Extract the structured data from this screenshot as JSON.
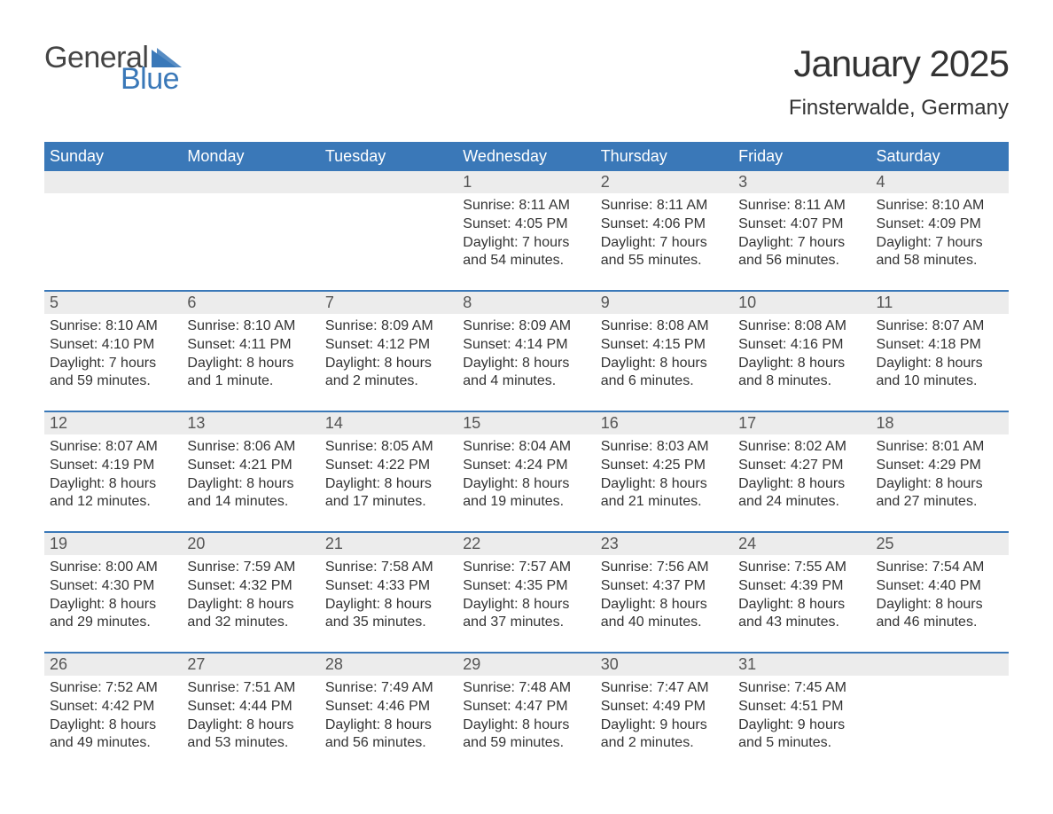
{
  "logo": {
    "text_general": "General",
    "text_blue": "Blue",
    "flag_color": "#3a78b8",
    "general_color": "#444444",
    "blue_color": "#3a78b8"
  },
  "header": {
    "month_title": "January 2025",
    "location": "Finsterwalde, Germany"
  },
  "colors": {
    "header_bg": "#3a78b8",
    "header_text": "#ffffff",
    "daynum_bg": "#ececec",
    "daynum_text": "#555555",
    "body_text": "#333333",
    "row_divider": "#3a78b8",
    "page_bg": "#ffffff"
  },
  "typography": {
    "month_title_fontsize": 42,
    "location_fontsize": 24,
    "day_header_fontsize": 18,
    "day_num_fontsize": 18,
    "detail_fontsize": 16,
    "font_family": "Arial"
  },
  "layout": {
    "columns": 7,
    "rows": 5,
    "cell_min_height": 120
  },
  "day_headers": [
    "Sunday",
    "Monday",
    "Tuesday",
    "Wednesday",
    "Thursday",
    "Friday",
    "Saturday"
  ],
  "weeks": [
    [
      null,
      null,
      null,
      {
        "n": "1",
        "sunrise": "8:11 AM",
        "sunset": "4:05 PM",
        "daylight": "7 hours and 54 minutes."
      },
      {
        "n": "2",
        "sunrise": "8:11 AM",
        "sunset": "4:06 PM",
        "daylight": "7 hours and 55 minutes."
      },
      {
        "n": "3",
        "sunrise": "8:11 AM",
        "sunset": "4:07 PM",
        "daylight": "7 hours and 56 minutes."
      },
      {
        "n": "4",
        "sunrise": "8:10 AM",
        "sunset": "4:09 PM",
        "daylight": "7 hours and 58 minutes."
      }
    ],
    [
      {
        "n": "5",
        "sunrise": "8:10 AM",
        "sunset": "4:10 PM",
        "daylight": "7 hours and 59 minutes."
      },
      {
        "n": "6",
        "sunrise": "8:10 AM",
        "sunset": "4:11 PM",
        "daylight": "8 hours and 1 minute."
      },
      {
        "n": "7",
        "sunrise": "8:09 AM",
        "sunset": "4:12 PM",
        "daylight": "8 hours and 2 minutes."
      },
      {
        "n": "8",
        "sunrise": "8:09 AM",
        "sunset": "4:14 PM",
        "daylight": "8 hours and 4 minutes."
      },
      {
        "n": "9",
        "sunrise": "8:08 AM",
        "sunset": "4:15 PM",
        "daylight": "8 hours and 6 minutes."
      },
      {
        "n": "10",
        "sunrise": "8:08 AM",
        "sunset": "4:16 PM",
        "daylight": "8 hours and 8 minutes."
      },
      {
        "n": "11",
        "sunrise": "8:07 AM",
        "sunset": "4:18 PM",
        "daylight": "8 hours and 10 minutes."
      }
    ],
    [
      {
        "n": "12",
        "sunrise": "8:07 AM",
        "sunset": "4:19 PM",
        "daylight": "8 hours and 12 minutes."
      },
      {
        "n": "13",
        "sunrise": "8:06 AM",
        "sunset": "4:21 PM",
        "daylight": "8 hours and 14 minutes."
      },
      {
        "n": "14",
        "sunrise": "8:05 AM",
        "sunset": "4:22 PM",
        "daylight": "8 hours and 17 minutes."
      },
      {
        "n": "15",
        "sunrise": "8:04 AM",
        "sunset": "4:24 PM",
        "daylight": "8 hours and 19 minutes."
      },
      {
        "n": "16",
        "sunrise": "8:03 AM",
        "sunset": "4:25 PM",
        "daylight": "8 hours and 21 minutes."
      },
      {
        "n": "17",
        "sunrise": "8:02 AM",
        "sunset": "4:27 PM",
        "daylight": "8 hours and 24 minutes."
      },
      {
        "n": "18",
        "sunrise": "8:01 AM",
        "sunset": "4:29 PM",
        "daylight": "8 hours and 27 minutes."
      }
    ],
    [
      {
        "n": "19",
        "sunrise": "8:00 AM",
        "sunset": "4:30 PM",
        "daylight": "8 hours and 29 minutes."
      },
      {
        "n": "20",
        "sunrise": "7:59 AM",
        "sunset": "4:32 PM",
        "daylight": "8 hours and 32 minutes."
      },
      {
        "n": "21",
        "sunrise": "7:58 AM",
        "sunset": "4:33 PM",
        "daylight": "8 hours and 35 minutes."
      },
      {
        "n": "22",
        "sunrise": "7:57 AM",
        "sunset": "4:35 PM",
        "daylight": "8 hours and 37 minutes."
      },
      {
        "n": "23",
        "sunrise": "7:56 AM",
        "sunset": "4:37 PM",
        "daylight": "8 hours and 40 minutes."
      },
      {
        "n": "24",
        "sunrise": "7:55 AM",
        "sunset": "4:39 PM",
        "daylight": "8 hours and 43 minutes."
      },
      {
        "n": "25",
        "sunrise": "7:54 AM",
        "sunset": "4:40 PM",
        "daylight": "8 hours and 46 minutes."
      }
    ],
    [
      {
        "n": "26",
        "sunrise": "7:52 AM",
        "sunset": "4:42 PM",
        "daylight": "8 hours and 49 minutes."
      },
      {
        "n": "27",
        "sunrise": "7:51 AM",
        "sunset": "4:44 PM",
        "daylight": "8 hours and 53 minutes."
      },
      {
        "n": "28",
        "sunrise": "7:49 AM",
        "sunset": "4:46 PM",
        "daylight": "8 hours and 56 minutes."
      },
      {
        "n": "29",
        "sunrise": "7:48 AM",
        "sunset": "4:47 PM",
        "daylight": "8 hours and 59 minutes."
      },
      {
        "n": "30",
        "sunrise": "7:47 AM",
        "sunset": "4:49 PM",
        "daylight": "9 hours and 2 minutes."
      },
      {
        "n": "31",
        "sunrise": "7:45 AM",
        "sunset": "4:51 PM",
        "daylight": "9 hours and 5 minutes."
      },
      null
    ]
  ],
  "labels": {
    "sunrise": "Sunrise:",
    "sunset": "Sunset:",
    "daylight": "Daylight:"
  }
}
